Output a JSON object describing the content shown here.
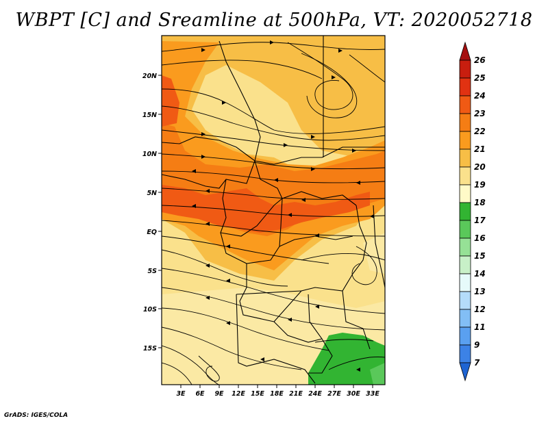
{
  "title": "WBPT [C] and Sreamline at 500hPa, VT: 2020052718",
  "credit": "GrADS: IGES/COLA",
  "map": {
    "field": "WBPT",
    "units": "C",
    "level": "500hPa",
    "valid_time": "2020052718",
    "lon_ticks": [
      "3E",
      "6E",
      "9E",
      "12E",
      "15E",
      "18E",
      "21E",
      "24E",
      "27E",
      "30E",
      "33E"
    ],
    "lat_ticks": [
      "20N",
      "15N",
      "10N",
      "5N",
      "EQ",
      "5S",
      "10S",
      "15S"
    ]
  },
  "colorbar": {
    "labels": [
      "26",
      "25",
      "24",
      "23",
      "22",
      "21",
      "20",
      "19",
      "18",
      "17",
      "16",
      "15",
      "14",
      "13",
      "12",
      "11",
      "9",
      "7"
    ],
    "colors": [
      "#a50f0f",
      "#c81e0f",
      "#e13212",
      "#f05a14",
      "#f57d14",
      "#fa9b1e",
      "#f7be46",
      "#fae18c",
      "#fffac8",
      "#32b432",
      "#5ac85a",
      "#96e196",
      "#c8f0c8",
      "#e6fafa",
      "#b4dcfa",
      "#82bef5",
      "#5aa0f0",
      "#3c82e6",
      "#1e64d2"
    ]
  },
  "regions": {
    "cool_patch_label": "18"
  }
}
